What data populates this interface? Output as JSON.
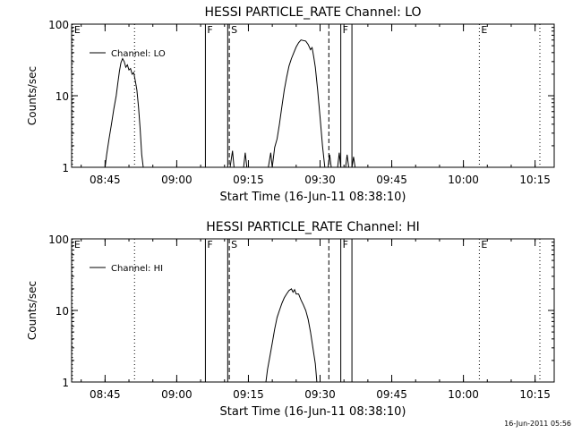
{
  "chart_data": [
    {
      "type": "line",
      "title": "HESSI PARTICLE_RATE Channel: LO",
      "xlabel": "Start Time (16-Jun-11 08:38:10)",
      "ylabel": "Counts/sec",
      "y_scale": "log",
      "ylim": [
        1,
        100
      ],
      "y_ticks": [
        {
          "value": 1,
          "label": "1"
        },
        {
          "value": 10,
          "label": "10"
        },
        {
          "value": 100,
          "label": "100"
        }
      ],
      "xlim": [
        "08:38",
        "10:19"
      ],
      "x_ticks": [
        "08:45",
        "09:00",
        "09:15",
        "09:30",
        "09:45",
        "10:00",
        "10:15"
      ],
      "legend": "top-left",
      "series": [
        {
          "name": "Channel: LO",
          "points": [
            [
              "08:45:00",
              1.0
            ],
            [
              "08:45:20",
              1.5
            ],
            [
              "08:45:50",
              2.5
            ],
            [
              "08:46:20",
              4.0
            ],
            [
              "08:46:50",
              6.5
            ],
            [
              "08:47:20",
              10.0
            ],
            [
              "08:47:40",
              15.0
            ],
            [
              "08:48:00",
              22.0
            ],
            [
              "08:48:20",
              29.0
            ],
            [
              "08:48:40",
              33.0
            ],
            [
              "08:49:00",
              30.0
            ],
            [
              "08:49:20",
              25.0
            ],
            [
              "08:49:40",
              27.0
            ],
            [
              "08:50:00",
              23.0
            ],
            [
              "08:50:20",
              24.0
            ],
            [
              "08:50:40",
              20.0
            ],
            [
              "08:51:00",
              21.0
            ],
            [
              "08:51:20",
              16.0
            ],
            [
              "08:51:40",
              12.0
            ],
            [
              "08:52:00",
              7.0
            ],
            [
              "08:52:20",
              3.5
            ],
            [
              "08:52:40",
              1.5
            ],
            [
              "08:53:00",
              1.0
            ]
          ],
          "extra_segments": [
            [
              [
                "09:11:10",
                1.0
              ],
              [
                "09:11:40",
                1.7
              ],
              [
                "09:12:00",
                1.0
              ]
            ],
            [
              [
                "09:14:00",
                1.0
              ],
              [
                "09:14:20",
                1.6
              ],
              [
                "09:14:40",
                1.0
              ]
            ],
            [
              [
                "09:19:10",
                1.0
              ],
              [
                "09:19:40",
                1.6
              ],
              [
                "09:20:00",
                1.0
              ]
            ],
            [
              [
                "09:20:00",
                1.0
              ],
              [
                "09:20:30",
                1.9
              ],
              [
                "09:21:00",
                2.5
              ],
              [
                "09:21:30",
                4.0
              ],
              [
                "09:22:00",
                7.0
              ],
              [
                "09:22:30",
                12.0
              ],
              [
                "09:23:00",
                18.0
              ],
              [
                "09:23:30",
                26.0
              ],
              [
                "09:24:00",
                33.0
              ],
              [
                "09:24:30",
                40.0
              ],
              [
                "09:25:00",
                48.0
              ],
              [
                "09:25:30",
                55.0
              ],
              [
                "09:26:00",
                60.0
              ],
              [
                "09:26:30",
                59.0
              ],
              [
                "09:27:00",
                58.0
              ],
              [
                "09:27:30",
                52.0
              ],
              [
                "09:28:00",
                44.0
              ],
              [
                "09:28:20",
                47.0
              ],
              [
                "09:28:40",
                35.0
              ],
              [
                "09:29:00",
                25.0
              ],
              [
                "09:29:30",
                12.0
              ],
              [
                "09:30:00",
                5.0
              ],
              [
                "09:30:30",
                2.0
              ],
              [
                "09:31:00",
                1.0
              ]
            ],
            [
              [
                "09:31:40",
                1.0
              ],
              [
                "09:32:00",
                1.5
              ],
              [
                "09:32:20",
                1.0
              ]
            ],
            [
              [
                "09:33:40",
                1.0
              ],
              [
                "09:34:00",
                1.6
              ],
              [
                "09:34:20",
                1.0
              ]
            ],
            [
              [
                "09:35:20",
                1.0
              ],
              [
                "09:35:40",
                1.5
              ],
              [
                "09:36:00",
                1.0
              ]
            ],
            [
              [
                "09:36:40",
                1.0
              ],
              [
                "09:37:00",
                1.4
              ],
              [
                "09:37:20",
                1.0
              ]
            ]
          ]
        }
      ],
      "markers": [
        {
          "time": "08:38:10",
          "style": "dotted",
          "label": "E"
        },
        {
          "time": "08:51:10",
          "style": "dotted",
          "label": ""
        },
        {
          "time": "09:06:00",
          "style": "solid",
          "label": "F"
        },
        {
          "time": "09:10:40",
          "style": "solid",
          "label": ""
        },
        {
          "time": "09:11:00",
          "style": "dashed",
          "label": "S"
        },
        {
          "time": "09:31:50",
          "style": "dashed",
          "label": ""
        },
        {
          "time": "09:34:20",
          "style": "solid",
          "label": "F"
        },
        {
          "time": "09:36:40",
          "style": "solid",
          "label": ""
        },
        {
          "time": "10:03:20",
          "style": "dotted",
          "label": "E"
        },
        {
          "time": "10:16:00",
          "style": "dotted",
          "label": ""
        }
      ]
    },
    {
      "type": "line",
      "title": "HESSI PARTICLE_RATE Channel: HI",
      "xlabel": "Start Time (16-Jun-11 08:38:10)",
      "ylabel": "Counts/sec",
      "y_scale": "log",
      "ylim": [
        1,
        100
      ],
      "y_ticks": [
        {
          "value": 1,
          "label": "1"
        },
        {
          "value": 10,
          "label": "10"
        },
        {
          "value": 100,
          "label": "100"
        }
      ],
      "xlim": [
        "08:38",
        "10:19"
      ],
      "x_ticks": [
        "08:45",
        "09:00",
        "09:15",
        "09:30",
        "09:45",
        "10:00",
        "10:15"
      ],
      "legend": "top-left",
      "series": [
        {
          "name": "Channel: HI",
          "points": [
            [
              "09:18:40",
              1.0
            ],
            [
              "09:19:00",
              1.5
            ],
            [
              "09:19:30",
              2.3
            ],
            [
              "09:20:00",
              3.5
            ],
            [
              "09:20:30",
              5.5
            ],
            [
              "09:21:00",
              8.0
            ],
            [
              "09:21:30",
              10.0
            ],
            [
              "09:22:00",
              12.5
            ],
            [
              "09:22:30",
              15.0
            ],
            [
              "09:23:00",
              17.0
            ],
            [
              "09:23:30",
              19.0
            ],
            [
              "09:24:00",
              20.0
            ],
            [
              "09:24:20",
              18.0
            ],
            [
              "09:24:40",
              19.5
            ],
            [
              "09:25:00",
              17.0
            ],
            [
              "09:25:30",
              17.0
            ],
            [
              "09:26:00",
              14.0
            ],
            [
              "09:26:30",
              12.0
            ],
            [
              "09:27:00",
              10.0
            ],
            [
              "09:27:30",
              7.5
            ],
            [
              "09:28:00",
              5.0
            ],
            [
              "09:28:30",
              3.0
            ],
            [
              "09:29:00",
              1.8
            ],
            [
              "09:29:20",
              1.0
            ]
          ]
        }
      ],
      "markers": [
        {
          "time": "08:38:10",
          "style": "dotted",
          "label": "E"
        },
        {
          "time": "08:51:10",
          "style": "dotted",
          "label": ""
        },
        {
          "time": "09:06:00",
          "style": "solid",
          "label": "F"
        },
        {
          "time": "09:10:40",
          "style": "solid",
          "label": ""
        },
        {
          "time": "09:11:00",
          "style": "dashed",
          "label": "S"
        },
        {
          "time": "09:31:50",
          "style": "dashed",
          "label": ""
        },
        {
          "time": "09:34:20",
          "style": "solid",
          "label": "F"
        },
        {
          "time": "09:36:40",
          "style": "solid",
          "label": ""
        },
        {
          "time": "10:03:20",
          "style": "dotted",
          "label": "E"
        },
        {
          "time": "10:16:00",
          "style": "dotted",
          "label": ""
        }
      ]
    }
  ],
  "footer": {
    "timestamp": "16-Jun-2011 05:56"
  }
}
